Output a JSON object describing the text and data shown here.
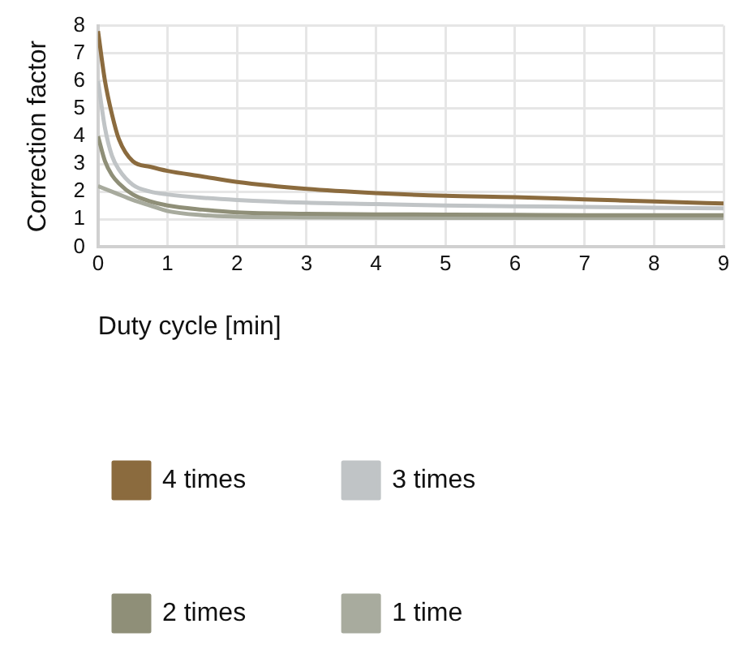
{
  "chart_data": {
    "type": "line",
    "xlabel": "Duty cycle [min]",
    "ylabel": "Correction factor",
    "xlim": [
      0,
      9
    ],
    "xticks": [
      0,
      1,
      2,
      3,
      4,
      5,
      6,
      7,
      8,
      9
    ],
    "ylim": [
      0,
      8
    ],
    "yticks": [
      0,
      1,
      2,
      3,
      4,
      5,
      6,
      7,
      8
    ],
    "grid": true,
    "legend": "bottom",
    "marker": "none",
    "line_style": "solid",
    "series": [
      {
        "name": "4 times",
        "color": "#8b6b3e",
        "x": [
          0,
          0.1,
          0.2,
          0.3,
          0.5,
          0.75,
          1,
          1.5,
          2,
          3,
          4,
          5,
          6,
          7,
          8,
          9
        ],
        "values": [
          7.8,
          6.0,
          4.8,
          3.9,
          3.1,
          2.9,
          2.75,
          2.55,
          2.35,
          2.1,
          1.95,
          1.85,
          1.8,
          1.72,
          1.65,
          1.57
        ]
      },
      {
        "name": "3 times",
        "color": "#c0c4c6",
        "x": [
          0,
          0.1,
          0.2,
          0.3,
          0.5,
          0.75,
          1,
          1.5,
          2,
          3,
          4,
          5,
          6,
          7,
          8,
          9
        ],
        "values": [
          6.0,
          4.3,
          3.3,
          2.8,
          2.25,
          2.0,
          1.9,
          1.78,
          1.7,
          1.6,
          1.55,
          1.5,
          1.47,
          1.45,
          1.42,
          1.4
        ]
      },
      {
        "name": "2 times",
        "color": "#8f8f78",
        "x": [
          0,
          0.1,
          0.2,
          0.3,
          0.5,
          0.75,
          1,
          1.5,
          2,
          3,
          4,
          5,
          6,
          7,
          8,
          9
        ],
        "values": [
          4.0,
          3.1,
          2.6,
          2.3,
          1.9,
          1.65,
          1.5,
          1.35,
          1.25,
          1.2,
          1.18,
          1.17,
          1.16,
          1.15,
          1.15,
          1.15
        ]
      },
      {
        "name": "1 time",
        "color": "#a8ab9e",
        "x": [
          0,
          0.25,
          0.5,
          0.75,
          1,
          1.5,
          2,
          3,
          4,
          5,
          6,
          7,
          8,
          9
        ],
        "values": [
          2.2,
          1.95,
          1.7,
          1.5,
          1.3,
          1.15,
          1.1,
          1.07,
          1.06,
          1.05,
          1.05,
          1.05,
          1.05,
          1.05
        ]
      }
    ]
  }
}
